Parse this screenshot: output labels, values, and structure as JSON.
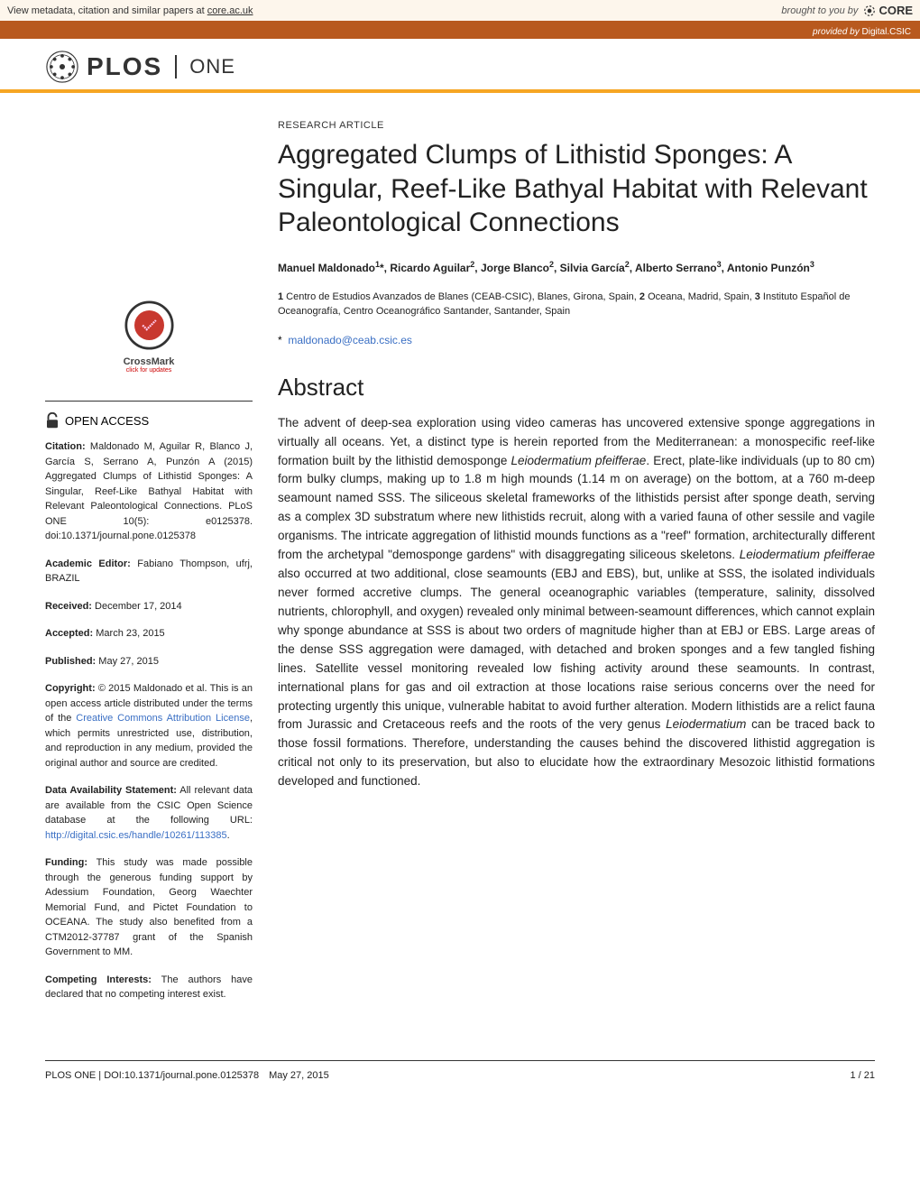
{
  "core_banner": {
    "left_prefix": "View metadata, citation and similar papers at ",
    "left_link": "core.ac.uk",
    "brought_by": "brought to you by",
    "core_name": "CORE",
    "provided_prefix": "provided by",
    "provided_name": "Digital.CSIC"
  },
  "plos": {
    "brand": "PLOS",
    "journal": "ONE"
  },
  "article": {
    "type": "RESEARCH ARTICLE",
    "title": "Aggregated Clumps of Lithistid Sponges: A Singular, Reef-Like Bathyal Habitat with Relevant Paleontological Connections",
    "authors_html": "Manuel Maldonado<sup>1</sup>*, Ricardo Aguilar<sup>2</sup>, Jorge Blanco<sup>2</sup>, Silvia García<sup>2</sup>, Alberto Serrano<sup>3</sup>, Antonio Punzón<sup>3</sup>",
    "affiliations_html": "<b>1</b> Centro de Estudios Avanzados de Blanes (CEAB-CSIC), Blanes, Girona, Spain, <b>2</b> Oceana, Madrid, Spain, <b>3</b> Instituto Español de Oceanografía, Centro Oceanográfico Santander, Santander, Spain",
    "correspond_star": "*",
    "correspond_email": "maldonado@ceab.csic.es",
    "abstract_heading": "Abstract",
    "abstract_html": "The advent of deep-sea exploration using video cameras has uncovered extensive sponge aggregations in virtually all oceans. Yet, a distinct type is herein reported from the Mediterranean: a monospecific reef-like formation built by the lithistid demosponge <i>Leiodermatium pfeifferae</i>. Erect, plate-like individuals (up to 80 cm) form bulky clumps, making up to 1.8 m high mounds (1.14 m on average) on the bottom, at a 760 m-deep seamount named SSS. The siliceous skeletal frameworks of the lithistids persist after sponge death, serving as a complex 3D substratum where new lithistids recruit, along with a varied fauna of other sessile and vagile organisms. The intricate aggregation of lithistid mounds functions as a \"reef\" formation, architecturally different from the archetypal \"demosponge gardens\" with disaggregating siliceous skeletons. <i>Leiodermatium pfeifferae</i> also occurred at two additional, close seamounts (EBJ and EBS), but, unlike at SSS, the isolated individuals never formed accretive clumps. The general oceanographic variables (temperature, salinity, dissolved nutrients, chlorophyll, and oxygen) revealed only minimal between-seamount differences, which cannot explain why sponge abundance at SSS is about two orders of magnitude higher than at EBJ or EBS. Large areas of the dense SSS aggregation were damaged, with detached and broken sponges and a few tangled fishing lines. Satellite vessel monitoring revealed low fishing activity around these seamounts. In contrast, international plans for gas and oil extraction at those locations raise serious concerns over the need for protecting urgently this unique, vulnerable habitat to avoid further alteration. Modern lithistids are a relict fauna from Jurassic and Cretaceous reefs and the roots of the very genus <i>Leiodermatium</i> can be traced back to those fossil formations. Therefore, understanding the causes behind the discovered lithistid aggregation is critical not only to its preservation, but also to elucidate how the extraordinary Mesozoic lithistid formations developed and functioned."
  },
  "sidebar": {
    "crossmark": "CrossMark",
    "crossmark_sub": "click for updates",
    "open_access": "OPEN ACCESS",
    "citation_label": "Citation:",
    "citation_text": " Maldonado M, Aguilar R, Blanco J, García S, Serrano A, Punzón A (2015) Aggregated Clumps of Lithistid Sponges: A Singular, Reef-Like Bathyal Habitat with Relevant Paleontological Connections. PLoS ONE 10(5): e0125378. doi:10.1371/journal.pone.0125378",
    "editor_label": "Academic Editor:",
    "editor_text": " Fabiano Thompson, ufrj, BRAZIL",
    "received_label": "Received:",
    "received_text": " December 17, 2014",
    "accepted_label": "Accepted:",
    "accepted_text": " March 23, 2015",
    "published_label": "Published:",
    "published_text": " May 27, 2015",
    "copyright_label": "Copyright:",
    "copyright_text_pre": " © 2015 Maldonado et al. This is an open access article distributed under the terms of the ",
    "copyright_link": "Creative Commons Attribution License",
    "copyright_text_post": ", which permits unrestricted use, distribution, and reproduction in any medium, provided the original author and source are credited.",
    "data_label": "Data Availability Statement:",
    "data_text_pre": " All relevant data are available from the CSIC Open Science database at the following URL: ",
    "data_link": "http://digital.csic.es/handle/10261/113385",
    "data_text_post": ".",
    "funding_label": "Funding:",
    "funding_text": " This study was made possible through the generous funding support by Adessium Foundation, Georg Waechter Memorial Fund, and Pictet Foundation to OCEANA. The study also benefited from a CTM2012-37787 grant of the Spanish Government to MM.",
    "competing_label": "Competing Interests:",
    "competing_text": " The authors have declared that no competing interest exist."
  },
  "footer": {
    "left": "PLOS ONE | DOI:10.1371/journal.pone.0125378 May 27, 2015",
    "right": "1 / 21"
  },
  "colors": {
    "accent_orange": "#f6a623",
    "core_brown": "#b8591e",
    "core_cream": "#fdf6ec",
    "link_blue": "#3a6fc4"
  }
}
